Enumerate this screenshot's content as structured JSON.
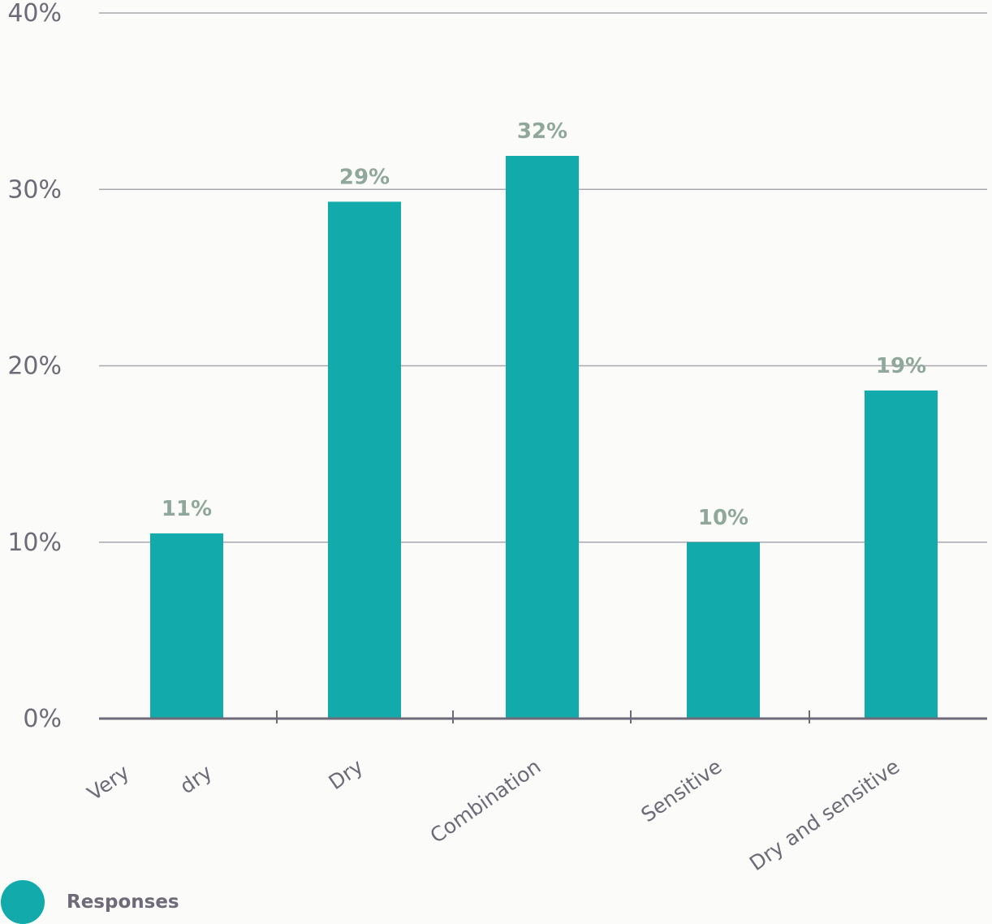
{
  "chart_data": {
    "type": "bar",
    "categories": [
      "Very dry",
      "Dry",
      "Combination",
      "Sensitive",
      "Dry and sensitive"
    ],
    "series": [
      {
        "name": "Responses",
        "values": [
          10.5,
          29.3,
          31.9,
          10.0,
          18.6
        ],
        "labels": [
          "11%",
          "29%",
          "32%",
          "10%",
          "19%"
        ]
      }
    ],
    "ylim": [
      0,
      40
    ],
    "yticks": [
      0,
      10,
      20,
      30,
      40
    ],
    "ytick_labels": [
      "0%",
      "10%",
      "20%",
      "30%",
      "40%"
    ],
    "grid": true,
    "legend_position": "bottom-left",
    "colors": {
      "bar": "#12aaab",
      "grid": "#a9a7ae",
      "axis": "#6e6a78",
      "tick_text": "#6e6a78",
      "data_label": "#8fa89b"
    }
  },
  "legend": {
    "label": "Responses"
  }
}
